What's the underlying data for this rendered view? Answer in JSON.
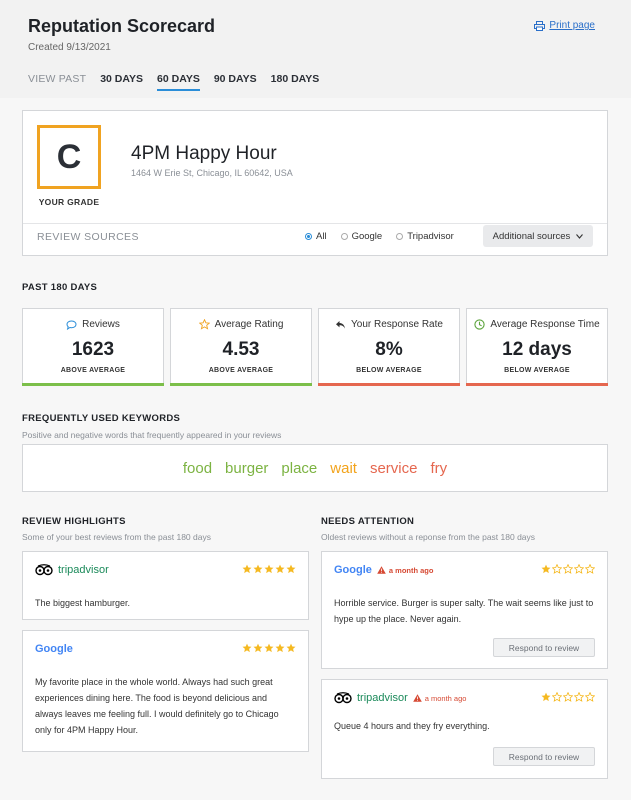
{
  "header": {
    "title": "Reputation Scorecard",
    "created": "Created 9/13/2021",
    "print_label": "Print page",
    "view_past_label": "VIEW PAST",
    "periods": [
      "30 DAYS",
      "60 DAYS",
      "90 DAYS",
      "180 DAYS"
    ],
    "active_period": "60 DAYS"
  },
  "business": {
    "grade": "C",
    "grade_label": "YOUR GRADE",
    "name": "4PM Happy Hour",
    "address": "1464 W Erie St, Chicago, IL 60642, USA"
  },
  "review_sources": {
    "label": "REVIEW SOURCES",
    "options": [
      "All",
      "Google",
      "Tripadvisor"
    ],
    "selected": "All",
    "additional_label": "Additional sources"
  },
  "stats": {
    "section_title": "PAST 180 DAYS",
    "items": [
      {
        "label": "Reviews",
        "value": "1623",
        "note": "ABOVE AVERAGE",
        "icon": "chat-bubble-icon",
        "status_color": "#7cbf4a"
      },
      {
        "label": "Average Rating",
        "value": "4.53",
        "note": "ABOVE AVERAGE",
        "icon": "star-outline-icon",
        "status_color": "#7cbf4a"
      },
      {
        "label": "Your Response Rate",
        "value": "8%",
        "note": "BELOW AVERAGE",
        "icon": "reply-arrow-icon",
        "status_color": "#e5674f"
      },
      {
        "label": "Average Response Time",
        "value": "12 days",
        "note": "BELOW AVERAGE",
        "icon": "clock-icon",
        "status_color": "#e5674f"
      }
    ]
  },
  "keywords": {
    "title": "FREQUENTLY USED KEYWORDS",
    "subtitle": "Positive and negative words that frequently appeared in your reviews",
    "items": [
      {
        "word": "food",
        "color": "#7cb342"
      },
      {
        "word": "burger",
        "color": "#7cb342"
      },
      {
        "word": "place",
        "color": "#7cb342"
      },
      {
        "word": "wait",
        "color": "#f2a31b"
      },
      {
        "word": "service",
        "color": "#e5674f"
      },
      {
        "word": "fry",
        "color": "#e5674f"
      }
    ]
  },
  "highlights": {
    "title": "REVIEW HIGHLIGHTS",
    "subtitle": "Some of your best reviews from the past 180 days",
    "reviews": [
      {
        "source": "tripadvisor",
        "rating": 5,
        "text": "The biggest hamburger."
      },
      {
        "source": "Google",
        "rating": 5,
        "text": "My favorite place in the whole world. Always had such great experiences dining here. The food is beyond delicious and always leaves me feeling full. I would definitely go to Chicago only for 4PM Happy Hour."
      }
    ]
  },
  "attention": {
    "title": "NEEDS ATTENTION",
    "subtitle": "Oldest reviews without a reponse from the past 180 days",
    "respond_label": "Respond to review",
    "reviews": [
      {
        "source": "Google",
        "ago": "a month ago",
        "rating": 1,
        "text": "Horrible service. Burger is super salty. The wait seems like just to hype up the place. Never again."
      },
      {
        "source": "tripadvisor",
        "ago": "a month ago",
        "rating": 1,
        "text": "Queue 4 hours and they fry everything."
      }
    ]
  },
  "colors": {
    "accent_blue": "#2a8dd8",
    "grade_border": "#f0a321",
    "star_gold": "#f5b921",
    "positive": "#7cbf4a",
    "negative": "#e5674f"
  }
}
